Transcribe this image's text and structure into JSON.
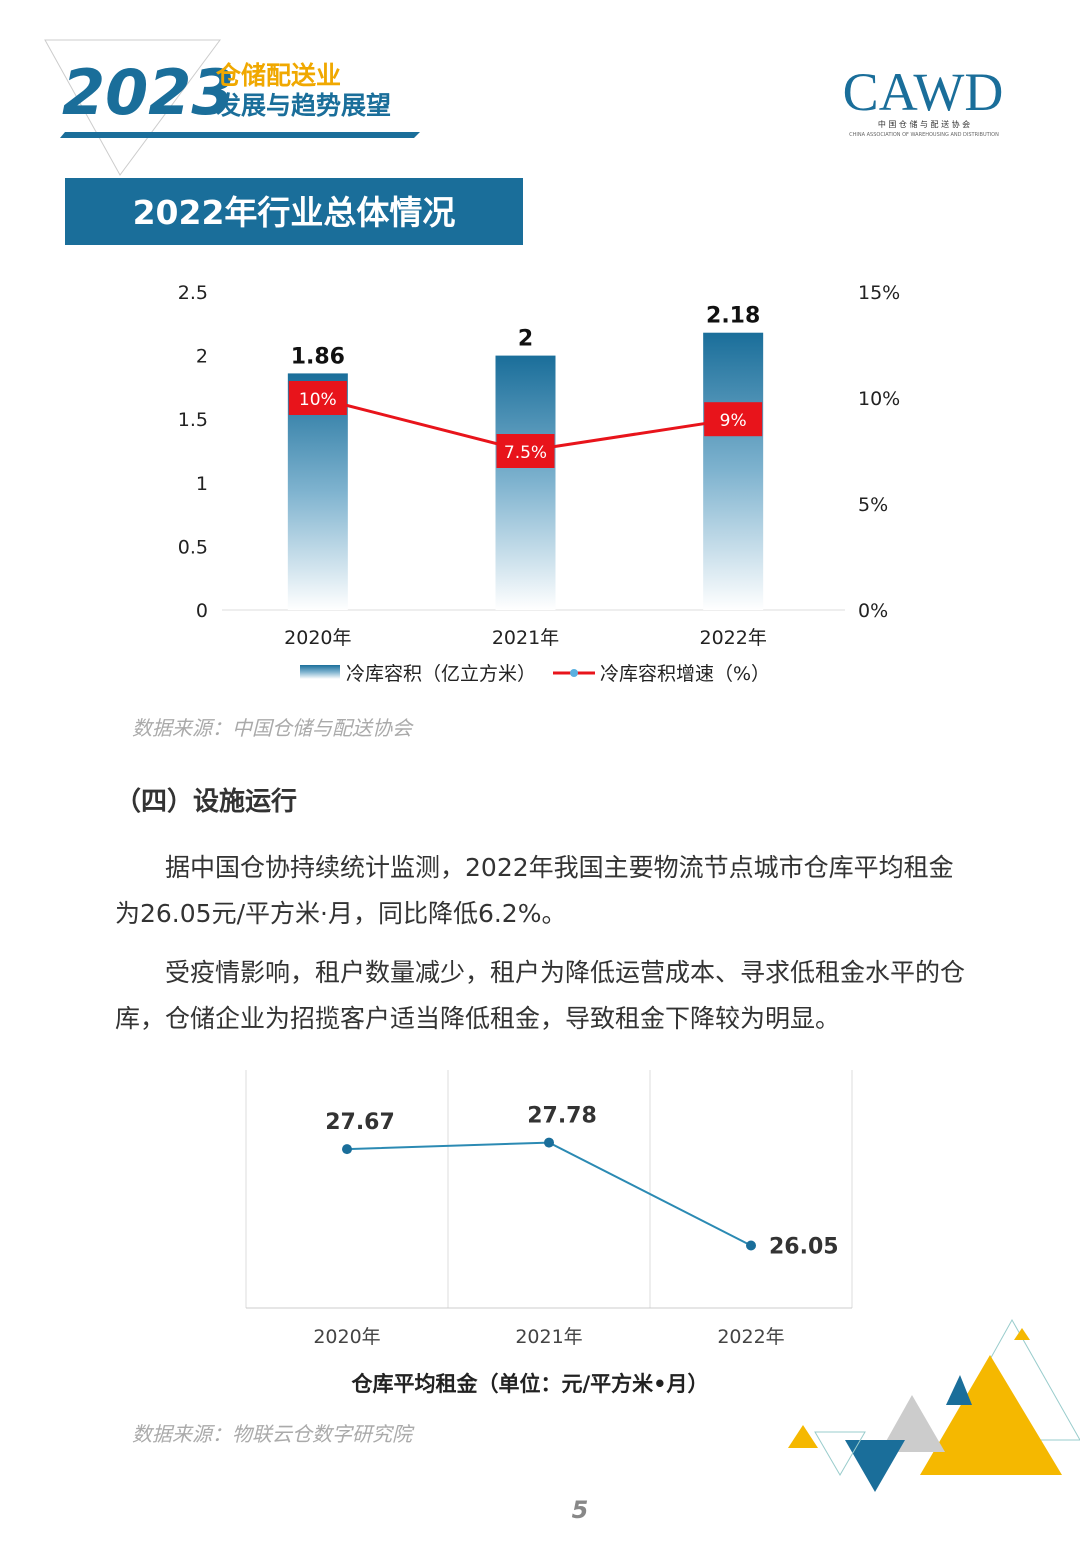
{
  "header": {
    "year": "2023",
    "title_line1": "仓储配送业",
    "title_line2": "发展与趋势展望",
    "logo": "CAWD",
    "logo_cn": "中 国 仓 储 与 配 送 协 会",
    "logo_en": "CHINA ASSOCIATION OF WAREHOUSING AND DISTRIBUTION"
  },
  "section_title": "2022年行业总体情况",
  "chart_data": [
    {
      "type": "bar_line",
      "categories": [
        "2020年",
        "2021年",
        "2022年"
      ],
      "series": [
        {
          "name": "冷库容积（亿立方米）",
          "color": "#1a6e9a",
          "values": [
            1.86,
            2,
            2.18
          ]
        },
        {
          "name": "冷库容积增速（%）",
          "color": "#e8141b",
          "axis": "y2",
          "values": [
            10,
            7.5,
            9
          ],
          "value_labels": [
            "10%",
            "7.5%",
            "9%"
          ]
        }
      ],
      "ylim": [
        0,
        2.5
      ],
      "yticks": [
        0,
        0.5,
        1,
        1.5,
        2,
        2.5
      ],
      "y2lim": [
        0,
        15
      ],
      "y2ticks": [
        {
          "value": 0,
          "label": "0%"
        },
        {
          "value": 5,
          "label": "5%"
        },
        {
          "value": 10,
          "label": "10%"
        },
        {
          "value": 15,
          "label": "15%"
        }
      ]
    },
    {
      "type": "line",
      "title": "仓库平均租金（单位：元/平方米•月）",
      "categories": [
        "2020年",
        "2021年",
        "2022年"
      ],
      "series": [
        {
          "color": "#2b8ab3",
          "values": [
            27.67,
            27.78,
            26.05
          ]
        }
      ],
      "ylim": [
        25,
        29
      ]
    }
  ],
  "source1": "数据来源：中国仓储与配送协会",
  "subsection": "（四）设施运行",
  "paragraphs": [
    "据中国仓协持续统计监测，2022年我国主要物流节点城市仓库平均租金为26.05元/平方米·月，同比降低6.2%。",
    "受疫情影响，租户数量减少，租户为降低运营成本、寻求低租金水平的仓库，仓储企业为招揽客户适当降低租金，导致租金下降较为明显。"
  ],
  "source2": "数据来源：物联云仓数字研究院",
  "page_number": "5"
}
